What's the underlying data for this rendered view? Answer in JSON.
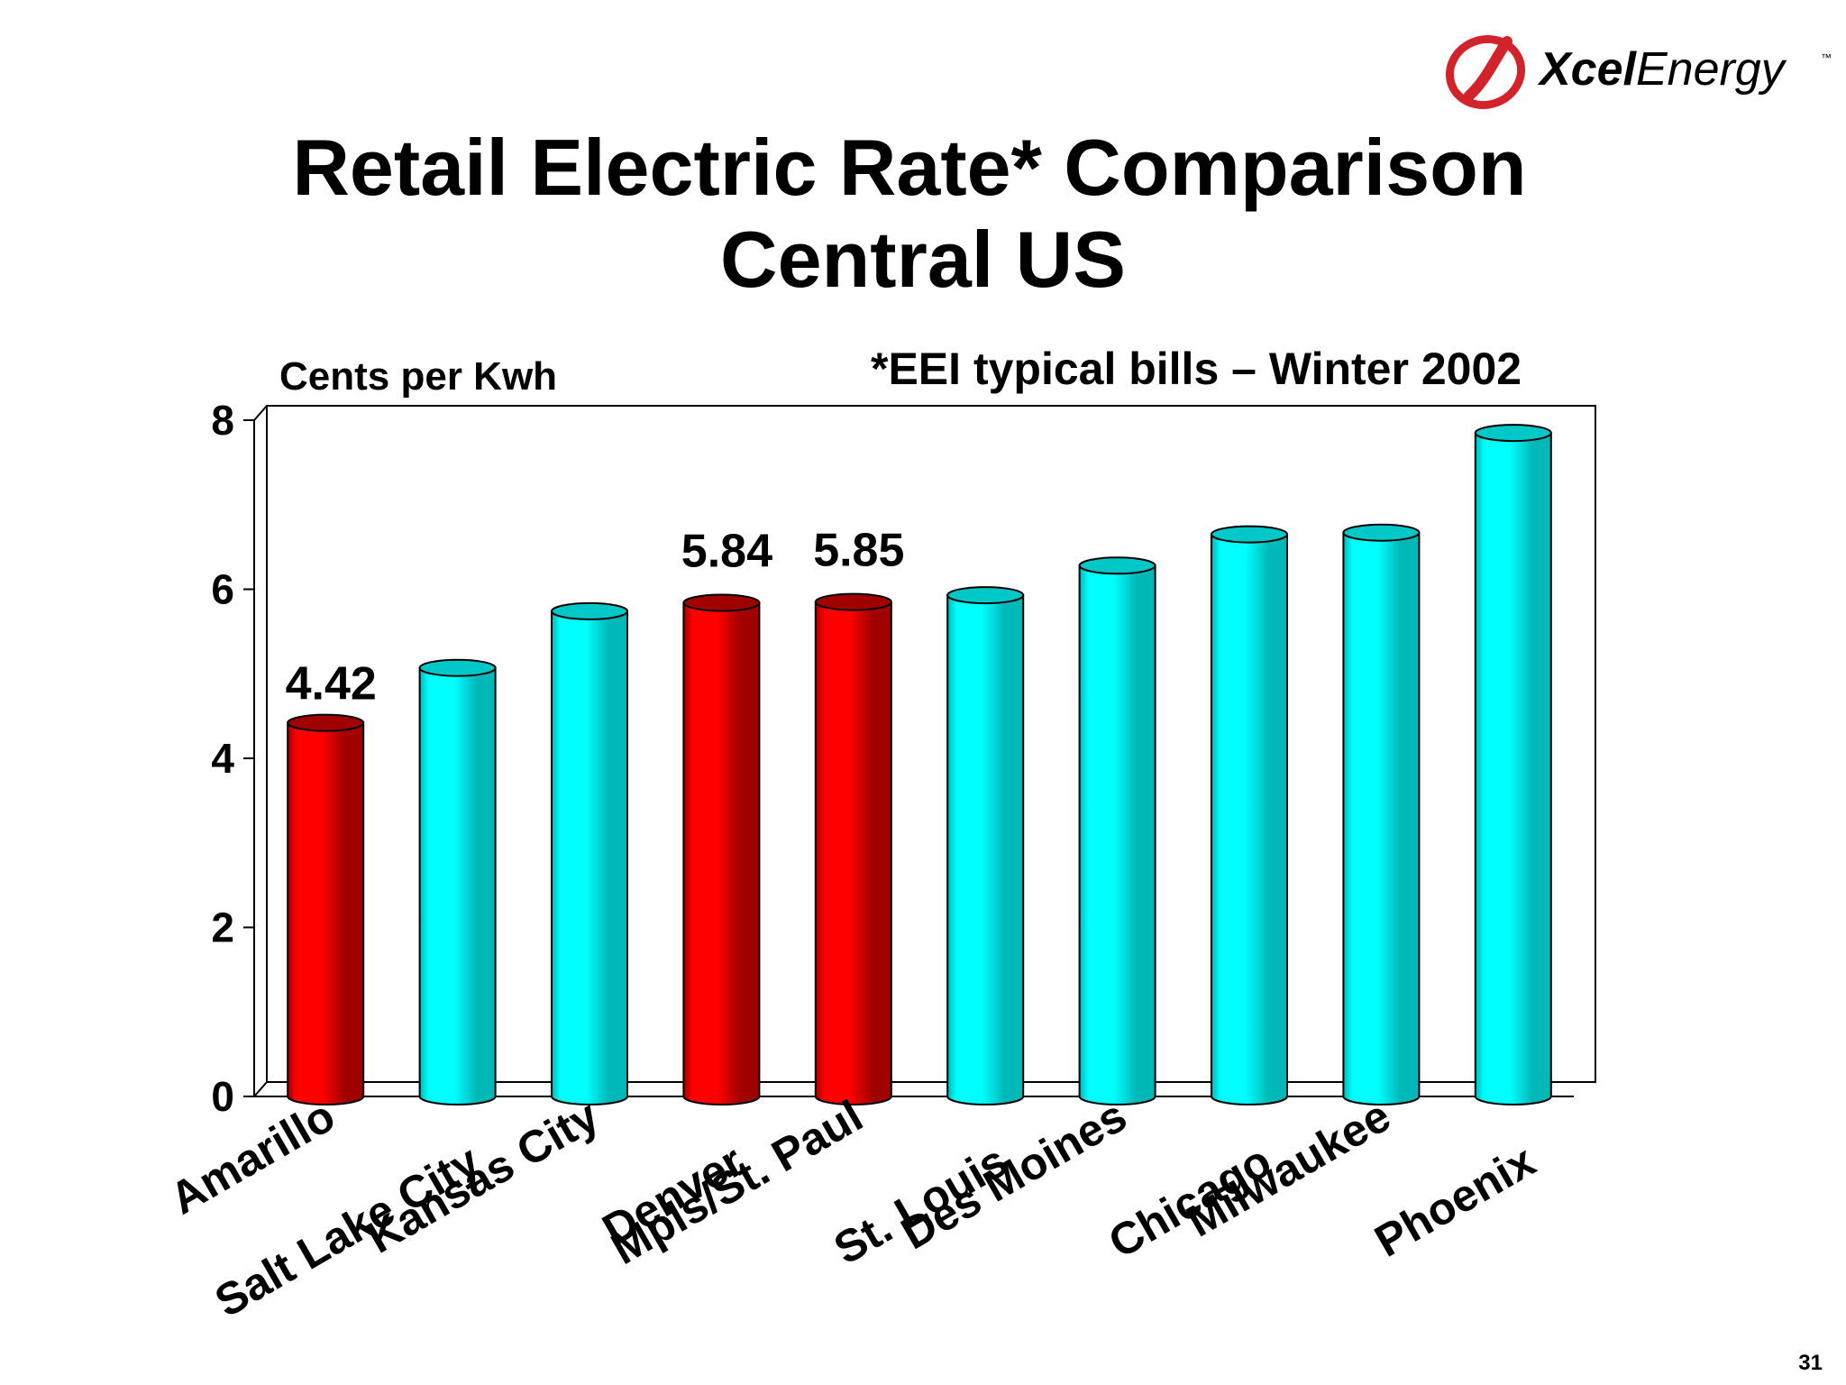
{
  "brand": {
    "logo_text_bold": "Xcel",
    "logo_text_regular": "Energy",
    "trademark": "™",
    "logo_color": "#d2232a"
  },
  "title": {
    "line1": "Retail Electric Rate* Comparison",
    "line2": "Central US"
  },
  "slide_number": "31",
  "chart_data": {
    "type": "bar",
    "ylabel": "Cents per Kwh",
    "footnote": "*EEI typical bills – Winter 2002",
    "ylim": [
      0,
      8
    ],
    "yticks": [
      0,
      2,
      4,
      6,
      8
    ],
    "categories": [
      "Amarillo",
      "Salt Lake City",
      "Kansas City",
      "Denver",
      "Mpls/St. Paul",
      "St. Louis",
      "Des Moines",
      "Chicago",
      "Milwaukee",
      "Phoenix"
    ],
    "values": [
      4.42,
      5.07,
      5.74,
      5.84,
      5.85,
      5.93,
      6.28,
      6.65,
      6.67,
      7.85
    ],
    "highlighted": [
      true,
      false,
      false,
      true,
      true,
      false,
      false,
      false,
      false,
      false
    ],
    "data_labels": [
      "4.42",
      "",
      "",
      "5.84",
      "5.85",
      "",
      "",
      "",
      "",
      ""
    ],
    "colors": {
      "highlight": "#ff0000",
      "highlight_dark": "#a00000",
      "normal": "#00ffff",
      "normal_dark": "#00b8b8"
    }
  }
}
